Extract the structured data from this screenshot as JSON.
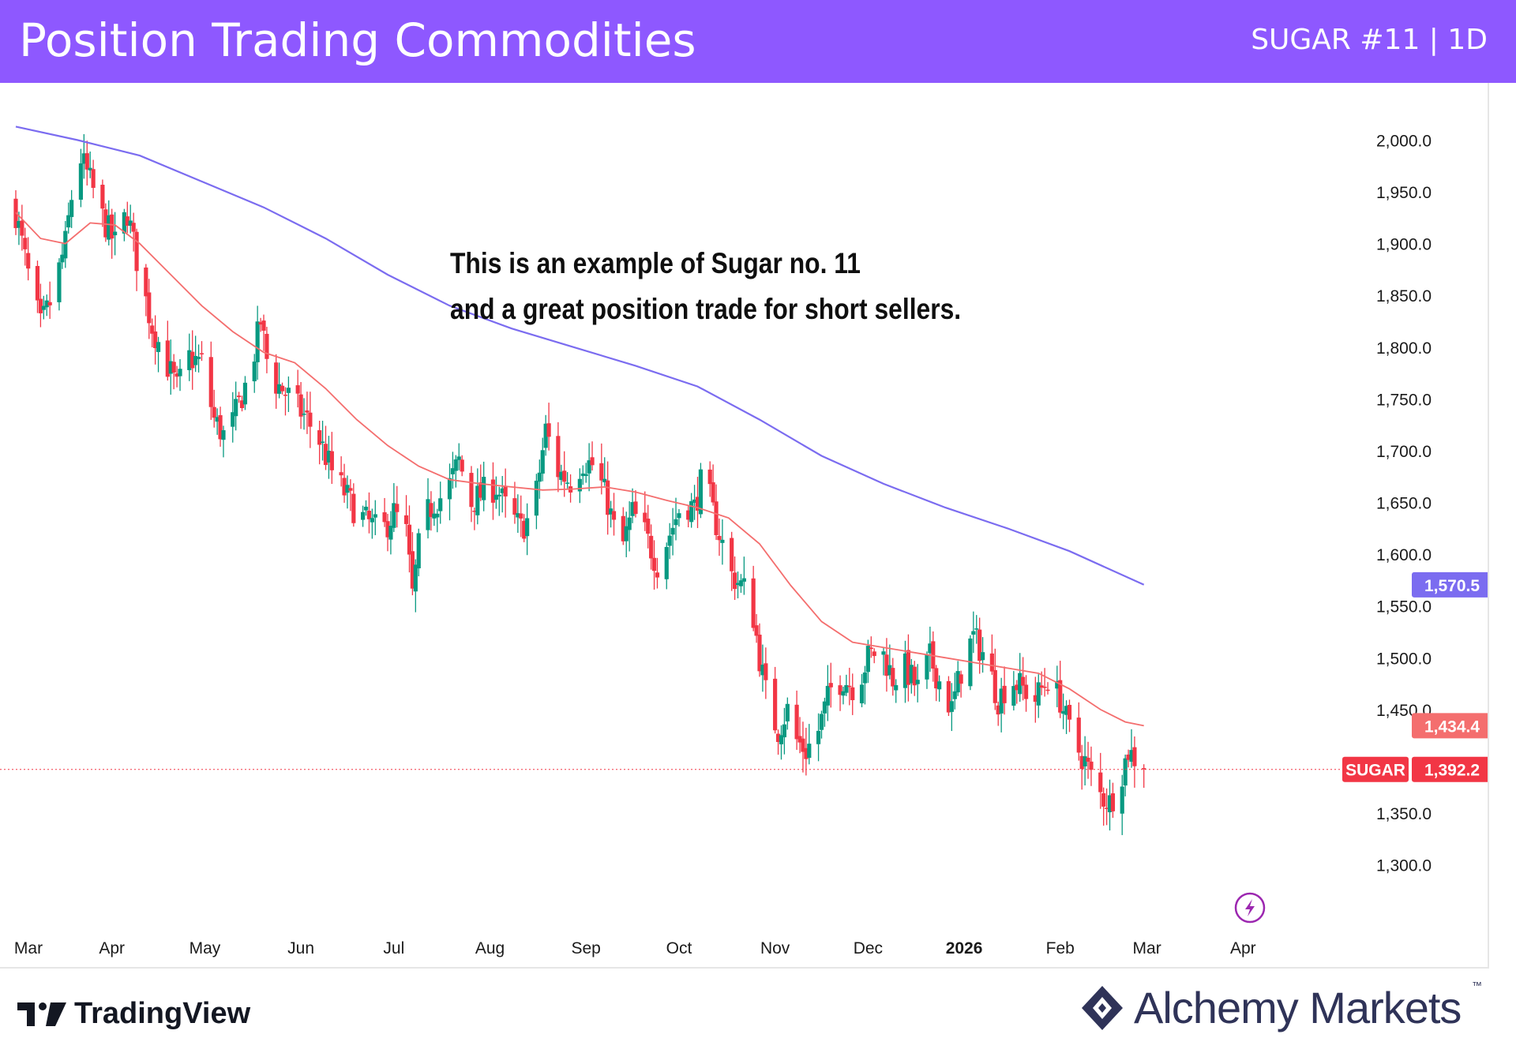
{
  "banner": {
    "title": "Position Trading Commodities",
    "symbol": "SUGAR #11 | 1D",
    "color": "#8e58ff"
  },
  "annotation": {
    "line1": "This is an example of Sugar no. 11",
    "line2": "and a great position trade for short sellers."
  },
  "brands": {
    "tradingview": "TradingView",
    "alchemy": "Alchemy Markets",
    "alchemy_tm": "™"
  },
  "icons": [
    "tradingview-logo-icon",
    "alchemy-logo-icon",
    "lightning-event-icon"
  ],
  "chart_data": {
    "type": "candlestick",
    "title": "SUGAR #11 | 1D",
    "y_ticks": [
      "2,000.0",
      "1,950.0",
      "1,900.0",
      "1,850.0",
      "1,800.0",
      "1,750.0",
      "1,700.0",
      "1,650.0",
      "1,600.0",
      "1,550.0",
      "1,500.0",
      "1,450.0",
      "1,350.0",
      "1,300.0"
    ],
    "y_tick_values": [
      2000,
      1950,
      1900,
      1850,
      1800,
      1750,
      1700,
      1650,
      1600,
      1550,
      1500,
      1450,
      1350,
      1300
    ],
    "ylim": [
      1270,
      2040
    ],
    "x_ticks": [
      {
        "label": "Mar",
        "day": 0
      },
      {
        "label": "Apr",
        "day": 31
      },
      {
        "label": "May",
        "day": 61
      },
      {
        "label": "Jun",
        "day": 92
      },
      {
        "label": "Jul",
        "day": 122
      },
      {
        "label": "Aug",
        "day": 153
      },
      {
        "label": "Sep",
        "day": 184
      },
      {
        "label": "Oct",
        "day": 214
      },
      {
        "label": "Nov",
        "day": 245
      },
      {
        "label": "Dec",
        "day": 275
      },
      {
        "label": "2026",
        "day": 306,
        "bold": true
      },
      {
        "label": "Feb",
        "day": 337
      },
      {
        "label": "Mar",
        "day": 365
      },
      {
        "label": "Apr",
        "day": 396
      }
    ],
    "xlim_days": [
      0,
      400
    ],
    "close_anchors": [
      {
        "day": 0,
        "close": 1930
      },
      {
        "day": 4,
        "close": 1870
      },
      {
        "day": 8,
        "close": 1820
      },
      {
        "day": 12,
        "close": 1850
      },
      {
        "day": 16,
        "close": 1900
      },
      {
        "day": 20,
        "close": 1990
      },
      {
        "day": 24,
        "close": 1960
      },
      {
        "day": 28,
        "close": 1925
      },
      {
        "day": 32,
        "close": 1900
      },
      {
        "day": 36,
        "close": 1930
      },
      {
        "day": 40,
        "close": 1870
      },
      {
        "day": 44,
        "close": 1820
      },
      {
        "day": 48,
        "close": 1790
      },
      {
        "day": 52,
        "close": 1760
      },
      {
        "day": 56,
        "close": 1790
      },
      {
        "day": 60,
        "close": 1785
      },
      {
        "day": 64,
        "close": 1730
      },
      {
        "day": 68,
        "close": 1710
      },
      {
        "day": 72,
        "close": 1745
      },
      {
        "day": 76,
        "close": 1780
      },
      {
        "day": 79,
        "close": 1825
      },
      {
        "day": 82,
        "close": 1770
      },
      {
        "day": 86,
        "close": 1760
      },
      {
        "day": 90,
        "close": 1745
      },
      {
        "day": 94,
        "close": 1730
      },
      {
        "day": 98,
        "close": 1710
      },
      {
        "day": 102,
        "close": 1680
      },
      {
        "day": 106,
        "close": 1660
      },
      {
        "day": 110,
        "close": 1640
      },
      {
        "day": 114,
        "close": 1630
      },
      {
        "day": 118,
        "close": 1620
      },
      {
        "day": 122,
        "close": 1640
      },
      {
        "day": 126,
        "close": 1620
      },
      {
        "day": 128,
        "close": 1560
      },
      {
        "day": 131,
        "close": 1630
      },
      {
        "day": 135,
        "close": 1650
      },
      {
        "day": 139,
        "close": 1660
      },
      {
        "day": 143,
        "close": 1690
      },
      {
        "day": 147,
        "close": 1650
      },
      {
        "day": 151,
        "close": 1660
      },
      {
        "day": 155,
        "close": 1665
      },
      {
        "day": 159,
        "close": 1640
      },
      {
        "day": 163,
        "close": 1625
      },
      {
        "day": 167,
        "close": 1640
      },
      {
        "day": 171,
        "close": 1720
      },
      {
        "day": 175,
        "close": 1680
      },
      {
        "day": 179,
        "close": 1670
      },
      {
        "day": 183,
        "close": 1690
      },
      {
        "day": 187,
        "close": 1685
      },
      {
        "day": 191,
        "close": 1650
      },
      {
        "day": 195,
        "close": 1600
      },
      {
        "day": 199,
        "close": 1640
      },
      {
        "day": 203,
        "close": 1620
      },
      {
        "day": 207,
        "close": 1590
      },
      {
        "day": 211,
        "close": 1620
      },
      {
        "day": 215,
        "close": 1650
      },
      {
        "day": 219,
        "close": 1645
      },
      {
        "day": 222,
        "close": 1680
      },
      {
        "day": 225,
        "close": 1640
      },
      {
        "day": 228,
        "close": 1610
      },
      {
        "day": 231,
        "close": 1580
      },
      {
        "day": 234,
        "close": 1570
      },
      {
        "day": 237,
        "close": 1560
      },
      {
        "day": 240,
        "close": 1500
      },
      {
        "day": 243,
        "close": 1450
      },
      {
        "day": 246,
        "close": 1430
      },
      {
        "day": 249,
        "close": 1450
      },
      {
        "day": 252,
        "close": 1420
      },
      {
        "day": 255,
        "close": 1410
      },
      {
        "day": 259,
        "close": 1430
      },
      {
        "day": 263,
        "close": 1470
      },
      {
        "day": 267,
        "close": 1480
      },
      {
        "day": 271,
        "close": 1470
      },
      {
        "day": 275,
        "close": 1500
      },
      {
        "day": 279,
        "close": 1510
      },
      {
        "day": 283,
        "close": 1480
      },
      {
        "day": 287,
        "close": 1490
      },
      {
        "day": 291,
        "close": 1470
      },
      {
        "day": 295,
        "close": 1500
      },
      {
        "day": 299,
        "close": 1470
      },
      {
        "day": 302,
        "close": 1450
      },
      {
        "day": 306,
        "close": 1500
      },
      {
        "day": 309,
        "close": 1520
      },
      {
        "day": 313,
        "close": 1500
      },
      {
        "day": 317,
        "close": 1460
      },
      {
        "day": 321,
        "close": 1480
      },
      {
        "day": 325,
        "close": 1470
      },
      {
        "day": 329,
        "close": 1460
      },
      {
        "day": 333,
        "close": 1480
      },
      {
        "day": 337,
        "close": 1460
      },
      {
        "day": 341,
        "close": 1420
      },
      {
        "day": 345,
        "close": 1400
      },
      {
        "day": 349,
        "close": 1370
      },
      {
        "day": 353,
        "close": 1360
      },
      {
        "day": 356,
        "close": 1380
      },
      {
        "day": 359,
        "close": 1410
      },
      {
        "day": 362,
        "close": 1400
      },
      {
        "day": 364,
        "close": 1392.2
      }
    ],
    "ma_fast": {
      "color": "#f46e6e",
      "last_value": 1434.4,
      "last_label": "1,434.4",
      "points": [
        {
          "day": 0,
          "value": 1930
        },
        {
          "day": 8,
          "value": 1905
        },
        {
          "day": 16,
          "value": 1900
        },
        {
          "day": 24,
          "value": 1920
        },
        {
          "day": 32,
          "value": 1918
        },
        {
          "day": 40,
          "value": 1900
        },
        {
          "day": 50,
          "value": 1870
        },
        {
          "day": 60,
          "value": 1840
        },
        {
          "day": 70,
          "value": 1815
        },
        {
          "day": 80,
          "value": 1795
        },
        {
          "day": 90,
          "value": 1785
        },
        {
          "day": 100,
          "value": 1760
        },
        {
          "day": 110,
          "value": 1730
        },
        {
          "day": 120,
          "value": 1705
        },
        {
          "day": 130,
          "value": 1685
        },
        {
          "day": 140,
          "value": 1672
        },
        {
          "day": 150,
          "value": 1668
        },
        {
          "day": 160,
          "value": 1665
        },
        {
          "day": 170,
          "value": 1662
        },
        {
          "day": 180,
          "value": 1663
        },
        {
          "day": 190,
          "value": 1665
        },
        {
          "day": 200,
          "value": 1660
        },
        {
          "day": 210,
          "value": 1652
        },
        {
          "day": 220,
          "value": 1645
        },
        {
          "day": 230,
          "value": 1635
        },
        {
          "day": 240,
          "value": 1610
        },
        {
          "day": 250,
          "value": 1570
        },
        {
          "day": 260,
          "value": 1535
        },
        {
          "day": 270,
          "value": 1515
        },
        {
          "day": 280,
          "value": 1510
        },
        {
          "day": 290,
          "value": 1505
        },
        {
          "day": 300,
          "value": 1500
        },
        {
          "day": 310,
          "value": 1495
        },
        {
          "day": 320,
          "value": 1490
        },
        {
          "day": 330,
          "value": 1485
        },
        {
          "day": 340,
          "value": 1470
        },
        {
          "day": 350,
          "value": 1450
        },
        {
          "day": 358,
          "value": 1438
        },
        {
          "day": 364,
          "value": 1434.4
        }
      ]
    },
    "ma_slow": {
      "color": "#7b6cf0",
      "last_value": 1570.5,
      "last_label": "1,570.5",
      "points": [
        {
          "day": 0,
          "value": 2013
        },
        {
          "day": 20,
          "value": 2000
        },
        {
          "day": 40,
          "value": 1985
        },
        {
          "day": 60,
          "value": 1960
        },
        {
          "day": 80,
          "value": 1935
        },
        {
          "day": 100,
          "value": 1905
        },
        {
          "day": 120,
          "value": 1870
        },
        {
          "day": 140,
          "value": 1840
        },
        {
          "day": 160,
          "value": 1818
        },
        {
          "day": 180,
          "value": 1800
        },
        {
          "day": 200,
          "value": 1782
        },
        {
          "day": 220,
          "value": 1762
        },
        {
          "day": 240,
          "value": 1730
        },
        {
          "day": 260,
          "value": 1695
        },
        {
          "day": 280,
          "value": 1668
        },
        {
          "day": 300,
          "value": 1645
        },
        {
          "day": 320,
          "value": 1625
        },
        {
          "day": 340,
          "value": 1603
        },
        {
          "day": 364,
          "value": 1570.5
        }
      ]
    },
    "last_price": {
      "symbol": "SUGAR",
      "value": 1392.2,
      "label": "1,392.2",
      "color": "#f23645"
    },
    "up_color": "#089981",
    "down_color": "#f23645",
    "grid": false
  }
}
